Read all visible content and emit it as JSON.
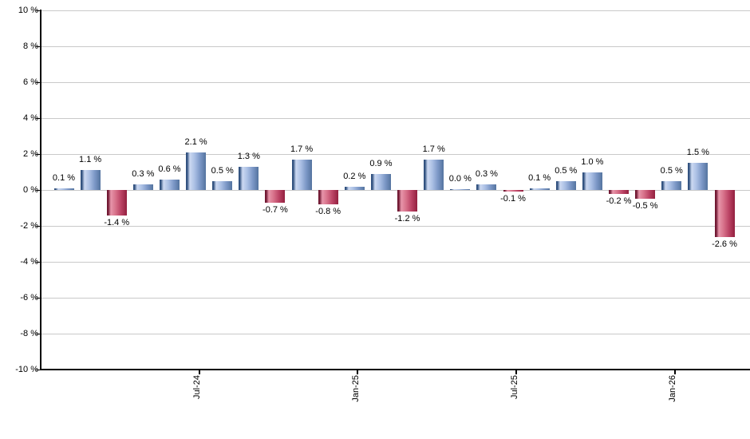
{
  "chart": {
    "background": "#ffffff",
    "colors": {
      "gridline": "#c9c9c9",
      "axis": "#000000",
      "label_text": "#000000",
      "positive_bar": {
        "edge": "#31517f",
        "highlight": "#ccd9f2",
        "mid": "#a9bee3",
        "mid2": "#7e99c8",
        "right": "#54749f"
      },
      "negative_bar": {
        "edge": "#701732",
        "highlight": "#e795aa",
        "mid": "#d66f88",
        "mid2": "#bc4465",
        "right": "#93203f"
      }
    }
  },
  "chart_data": {
    "type": "bar",
    "title": "",
    "xlabel": "",
    "ylabel": "",
    "ylim": [
      -10,
      10
    ],
    "y_ticks": [
      10,
      8,
      6,
      4,
      2,
      0,
      -2,
      -4,
      -6,
      -8,
      -10
    ],
    "y_tick_suffix": " %",
    "grid": true,
    "legend": false,
    "values": [
      0.1,
      1.1,
      -1.4,
      0.3,
      0.6,
      2.1,
      0.5,
      1.3,
      -0.7,
      1.7,
      -0.8,
      0.2,
      0.9,
      -1.2,
      1.7,
      0.0,
      0.3,
      -0.1,
      0.1,
      0.5,
      1.0,
      -0.2,
      -0.5,
      0.5,
      1.5,
      -2.6
    ],
    "value_label_decimals": 1,
    "value_label_suffix": " %",
    "bar_color_rule": "positive bars blue, negative bars red",
    "x_ticks": [
      {
        "index": 5,
        "label": "Jul-24"
      },
      {
        "index": 11,
        "label": "Jan-25"
      },
      {
        "index": 17,
        "label": "Jul-25"
      },
      {
        "index": 23,
        "label": "Jan-26"
      }
    ]
  }
}
